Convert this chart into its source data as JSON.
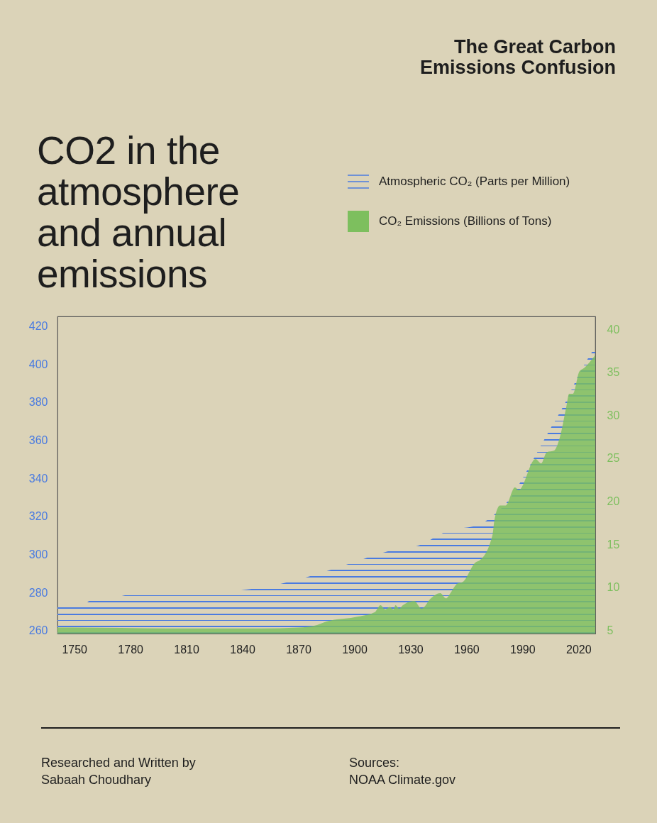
{
  "chart_data": {
    "type": "area",
    "title": "CO2 in the atmosphere and annual emissions",
    "subtitle": "The Great Carbon Emissions Confusion",
    "annotations": [
      "Researched and Written by\nSabaah Choudhary",
      "Sources:\nNOAA Climate.gov"
    ],
    "legend": "top right",
    "xlim": [
      1741,
      2029
    ],
    "xticks": [
      1750,
      1780,
      1810,
      1840,
      1870,
      1900,
      1930,
      1960,
      1990,
      2020
    ],
    "ylim": [
      258.5,
      425
    ],
    "yticks": [
      260,
      280,
      300,
      320,
      340,
      360,
      380,
      400,
      420
    ],
    "y2lim": [
      4.6,
      41.5
    ],
    "y2ticks": [
      5,
      10,
      15,
      20,
      25,
      30,
      35,
      40
    ],
    "series": [
      {
        "name": "CO₂ Emissions (Billions of Tons)",
        "color": "#7dbf5e",
        "axis": "y2",
        "x": [
          1741,
          1750,
          1800,
          1850,
          1870,
          1880,
          1885,
          1900,
          1911,
          1914,
          1916.5,
          1919,
          1921,
          1922,
          1924,
          1926,
          1932,
          1936,
          1941,
          1946,
          1949,
          1952,
          1955,
          1958,
          1965,
          1967,
          1974,
          1975,
          1978,
          1981,
          1986,
          1988,
          1997,
          2000,
          2003,
          2007,
          2010,
          2013.5,
          2015,
          2017,
          2020.5,
          2023,
          2029
        ],
        "values": [
          5.3,
          5.3,
          5.2,
          5.2,
          5.3,
          5.6,
          6.0,
          6.5,
          7.1,
          7.9,
          7.4,
          7.7,
          7.4,
          7.9,
          7.5,
          7.9,
          8.4,
          7.5,
          8.7,
          9.3,
          8.7,
          9.5,
          10.4,
          10.6,
          12.9,
          13.1,
          16.1,
          17.8,
          19.5,
          19.5,
          21.6,
          21.3,
          24.9,
          24.4,
          25.7,
          25.9,
          27.4,
          31.0,
          32.5,
          32.5,
          35.1,
          35.5,
          37.0
        ]
      },
      {
        "name": "Atmospheric CO₂ (Parts per Million)",
        "color": "#4a7be0",
        "x": [
          1741,
          1755,
          1760,
          1765,
          1780,
          1795,
          1810,
          1825,
          1840,
          1860,
          1881,
          1900,
          1918,
          1934,
          1951,
          1966,
          1976,
          1983,
          1993,
          2003,
          2013,
          2021,
          2029
        ],
        "values": [
          273.8,
          274.0,
          276.7,
          276.0,
          279.0,
          279.3,
          279.0,
          279.3,
          281.3,
          284.5,
          290.0,
          296.0,
          301.7,
          304.6,
          312.8,
          315.4,
          321.8,
          329.0,
          345.0,
          362.7,
          379.8,
          396.0,
          409.0
        ]
      }
    ]
  }
}
